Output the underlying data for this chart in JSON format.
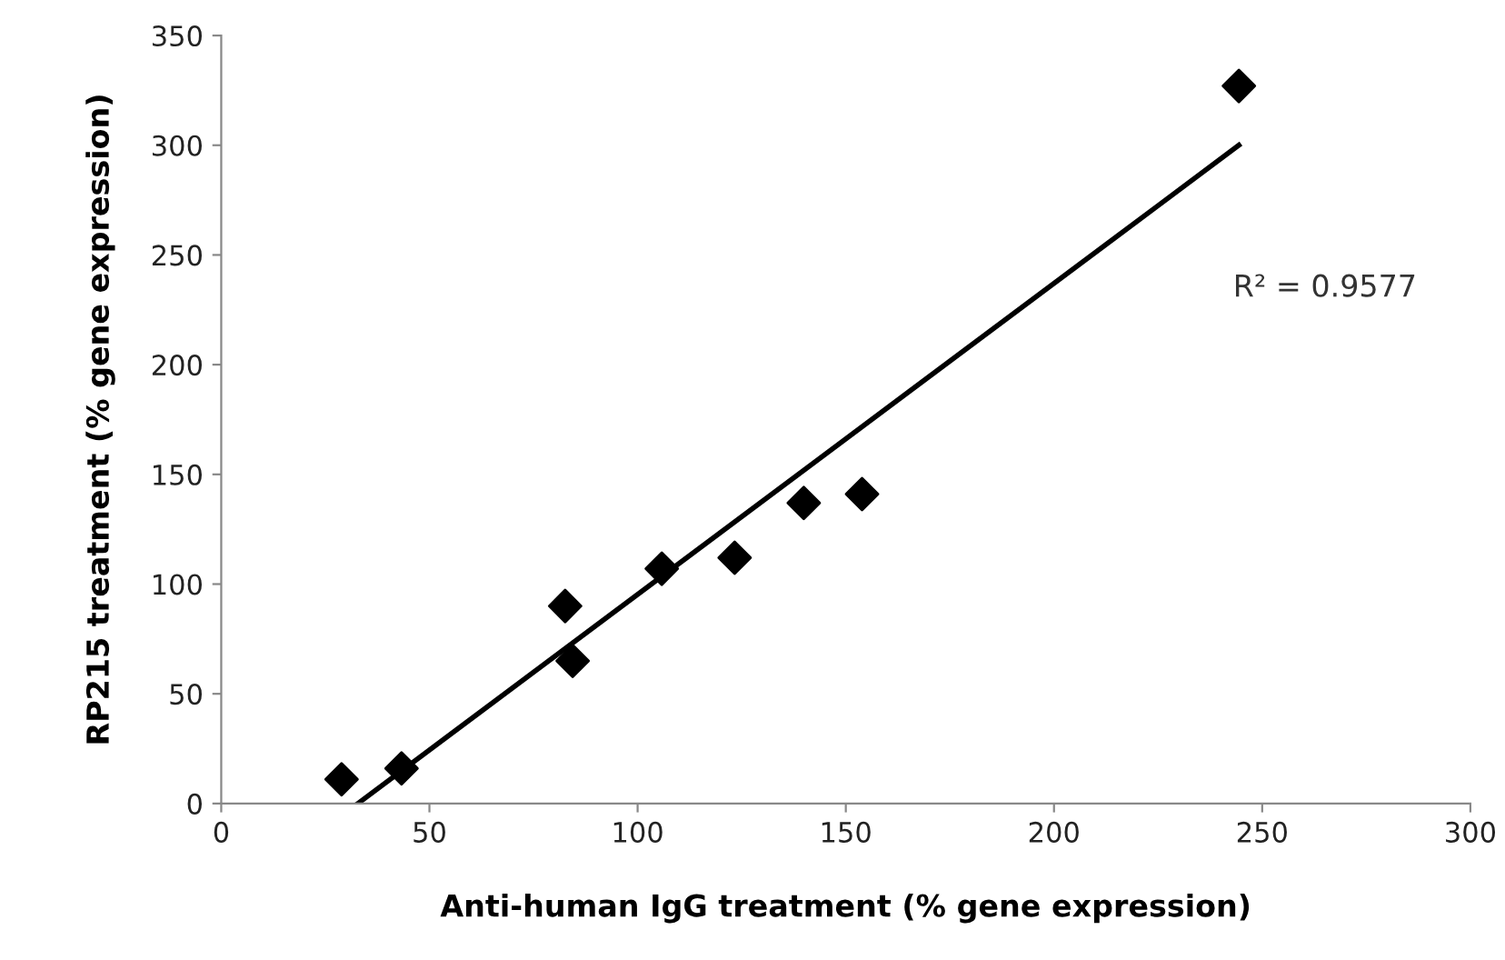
{
  "chart_data": {
    "type": "scatter",
    "xlabel": "Anti-human IgG treatment (% gene expression)",
    "ylabel": "RP215 treatment (% gene expression)",
    "series": [
      {
        "color": "#000000",
        "marker": "diamond",
        "x": [
          28.9,
          43.3,
          82.6,
          84.4,
          105.8,
          123.3,
          139.9,
          153.9,
          244.4
        ],
        "values": [
          11,
          16,
          90,
          65,
          107,
          112,
          137,
          141,
          327
        ]
      },
      {
        "type": "line",
        "color": "#000000",
        "marker": "none",
        "line_style": "solid",
        "x": [
          32.8,
          244.4
        ],
        "values": [
          0,
          300
        ]
      }
    ],
    "annotations": [
      "R² = 0.9577"
    ],
    "xlim": [
      0,
      300
    ],
    "xticks": [
      0,
      50,
      100,
      150,
      200,
      250,
      300
    ],
    "ylim": [
      0,
      350
    ],
    "yticks": [
      0,
      50,
      100,
      150,
      200,
      250,
      300,
      350
    ],
    "grid": false,
    "legend": false
  }
}
